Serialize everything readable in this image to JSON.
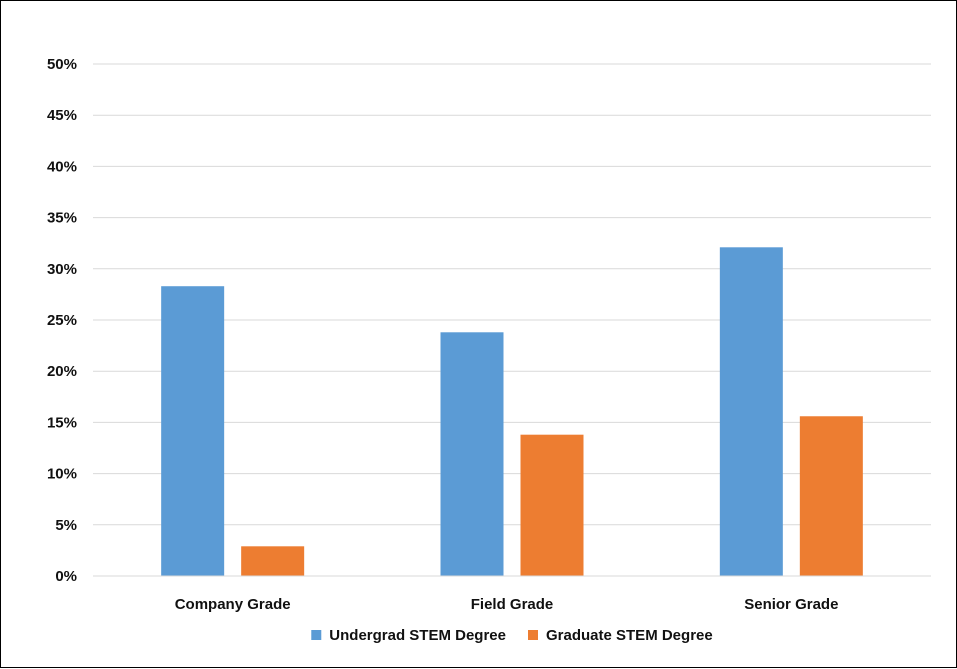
{
  "chart_data": {
    "type": "bar",
    "title": "",
    "xlabel": "",
    "ylabel": "",
    "categories": [
      "Company Grade",
      "Field Grade",
      "Senior Grade"
    ],
    "series": [
      {
        "name": "Undergrad STEM Degree",
        "color": "#5b9bd5",
        "values": [
          28.3,
          23.8,
          32.1
        ]
      },
      {
        "name": "Graduate STEM Degree",
        "color": "#ed7d31",
        "values": [
          2.9,
          13.8,
          15.6
        ]
      }
    ],
    "ylim": [
      0,
      50
    ],
    "yticks": [
      0,
      5,
      10,
      15,
      20,
      25,
      30,
      35,
      40,
      45,
      50
    ],
    "ytick_format": "percent",
    "grid": true,
    "legend": "bottom"
  }
}
